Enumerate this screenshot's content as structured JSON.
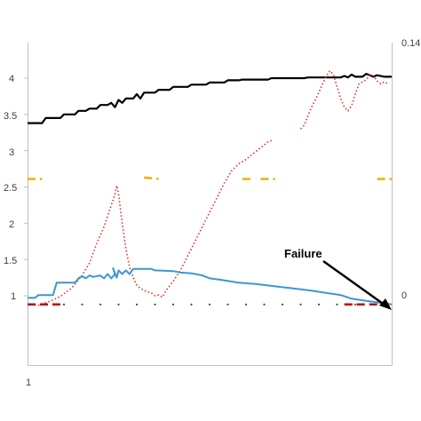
{
  "chart_data": {
    "type": "line",
    "title": "",
    "xlabel": "",
    "ylabel": "",
    "x_tick_labels": [
      "1"
    ],
    "xlim": [
      0,
      100
    ],
    "y_left": {
      "tick_labels": [
        "1",
        "1.5",
        "2",
        "2.5",
        "3",
        "3.5",
        "4"
      ],
      "ylim": [
        0.85,
        4.45
      ]
    },
    "y_right": {
      "tick_labels": [
        "0",
        "0.14"
      ],
      "ylim": [
        -0.055,
        0.14
      ]
    },
    "grid": false,
    "legend": "none",
    "annotations": [
      {
        "text": "Failure",
        "arrow_to": {
          "x": 99,
          "y": 0.05
        }
      }
    ],
    "series": [
      {
        "axis": "left",
        "color": "#000000",
        "style": "solid",
        "step": true,
        "points": [
          [
            0,
            3.38
          ],
          [
            4,
            3.38
          ],
          [
            5,
            3.45
          ],
          [
            9,
            3.45
          ],
          [
            10,
            3.5
          ],
          [
            13,
            3.5
          ],
          [
            14,
            3.55
          ],
          [
            16,
            3.55
          ],
          [
            17,
            3.58
          ],
          [
            19,
            3.58
          ],
          [
            20,
            3.63
          ],
          [
            22,
            3.63
          ],
          [
            23,
            3.66
          ],
          [
            24,
            3.6
          ],
          [
            25,
            3.7
          ],
          [
            26,
            3.66
          ],
          [
            27,
            3.72
          ],
          [
            29,
            3.72
          ],
          [
            30,
            3.78
          ],
          [
            31,
            3.72
          ],
          [
            32,
            3.8
          ],
          [
            35,
            3.8
          ],
          [
            36,
            3.84
          ],
          [
            39,
            3.84
          ],
          [
            40,
            3.88
          ],
          [
            44,
            3.88
          ],
          [
            45,
            3.91
          ],
          [
            49,
            3.91
          ],
          [
            50,
            3.94
          ],
          [
            54,
            3.94
          ],
          [
            55,
            3.97
          ],
          [
            58,
            3.97
          ],
          [
            59,
            3.98
          ],
          [
            66,
            3.98
          ],
          [
            67,
            4.0
          ],
          [
            76,
            4.0
          ],
          [
            77,
            4.01
          ],
          [
            86,
            4.01
          ],
          [
            87,
            4.03
          ],
          [
            88,
            4.01
          ],
          [
            89,
            4.05
          ],
          [
            90,
            4.02
          ],
          [
            92,
            4.02
          ],
          [
            93,
            4.06
          ],
          [
            95,
            4.02
          ],
          [
            96,
            4.04
          ],
          [
            98,
            4.02
          ],
          [
            100,
            4.02
          ]
        ]
      },
      {
        "axis": "left",
        "color": "#e0302a",
        "style": "dotted",
        "points": [
          [
            0,
            0.88
          ],
          [
            3,
            0.87
          ],
          [
            6,
            0.92
          ],
          [
            9,
            0.99
          ],
          [
            12,
            1.1
          ],
          [
            15,
            1.28
          ],
          [
            17,
            1.45
          ],
          [
            19,
            1.72
          ],
          [
            21,
            1.95
          ],
          [
            23,
            2.25
          ],
          [
            24,
            2.4
          ],
          [
            24.5,
            2.52
          ],
          [
            25,
            2.4
          ],
          [
            26,
            2.0
          ],
          [
            27,
            1.65
          ],
          [
            28,
            1.4
          ],
          [
            29,
            1.25
          ],
          [
            30,
            1.15
          ],
          [
            31,
            1.1
          ],
          [
            33,
            1.05
          ],
          [
            34,
            1.04
          ],
          [
            35,
            1.0
          ],
          [
            36,
            1.01
          ],
          [
            37,
            0.98
          ],
          [
            38,
            1.07
          ],
          [
            40,
            1.2
          ],
          [
            42,
            1.35
          ],
          [
            44,
            1.55
          ],
          [
            46,
            1.75
          ],
          [
            48,
            1.95
          ],
          [
            50,
            2.15
          ],
          [
            52,
            2.35
          ],
          [
            54,
            2.55
          ],
          [
            56,
            2.72
          ],
          [
            58,
            2.82
          ],
          [
            60,
            2.88
          ],
          [
            62,
            2.96
          ],
          [
            64,
            3.04
          ],
          [
            66,
            3.12
          ],
          [
            67,
            3.14
          ]
        ],
        "points_b": [
          [
            75,
            3.3
          ],
          [
            76,
            3.35
          ],
          [
            77,
            3.48
          ],
          [
            78,
            3.6
          ],
          [
            79,
            3.7
          ],
          [
            80,
            3.8
          ],
          [
            81,
            3.92
          ],
          [
            82,
            4.02
          ],
          [
            83,
            4.1
          ],
          [
            84,
            4.05
          ],
          [
            85,
            3.88
          ],
          [
            86,
            3.72
          ],
          [
            87,
            3.6
          ],
          [
            88,
            3.55
          ],
          [
            89,
            3.62
          ],
          [
            90,
            3.78
          ],
          [
            91,
            3.92
          ],
          [
            92,
            3.95
          ],
          [
            93,
            3.98
          ],
          [
            94,
            4.04
          ],
          [
            95,
            4.03
          ],
          [
            96,
            3.96
          ],
          [
            97,
            3.92
          ],
          [
            98,
            3.95
          ],
          [
            99,
            3.92
          ]
        ]
      },
      {
        "axis": "left",
        "color": "#3c96d2",
        "style": "solid",
        "points": [
          [
            0,
            0.97
          ],
          [
            2,
            0.97
          ],
          [
            3,
            1.01
          ],
          [
            7,
            1.01
          ],
          [
            8,
            1.18
          ],
          [
            13,
            1.18
          ],
          [
            14,
            1.24
          ],
          [
            15,
            1.27
          ],
          [
            16,
            1.24
          ],
          [
            17,
            1.28
          ],
          [
            18,
            1.26
          ],
          [
            20,
            1.28
          ],
          [
            21,
            1.24
          ],
          [
            22,
            1.3
          ],
          [
            23,
            1.24
          ],
          [
            24,
            1.3
          ],
          [
            23.5,
            1.38
          ],
          [
            24.5,
            1.25
          ],
          [
            25,
            1.35
          ],
          [
            26,
            1.3
          ],
          [
            27,
            1.35
          ],
          [
            28,
            1.3
          ],
          [
            29,
            1.37
          ],
          [
            34,
            1.37
          ],
          [
            35,
            1.35
          ],
          [
            40,
            1.34
          ],
          [
            42,
            1.32
          ],
          [
            45,
            1.31
          ],
          [
            47,
            1.29
          ],
          [
            48,
            1.28
          ],
          [
            50,
            1.24
          ],
          [
            53,
            1.22
          ],
          [
            58,
            1.18
          ],
          [
            63,
            1.16
          ],
          [
            68,
            1.13
          ],
          [
            73,
            1.1
          ],
          [
            78,
            1.07
          ],
          [
            82,
            1.04
          ],
          [
            86,
            1.01
          ],
          [
            89,
            0.96
          ],
          [
            93,
            0.93
          ],
          [
            96,
            0.91
          ],
          [
            99,
            0.89
          ],
          [
            100,
            0.88
          ]
        ]
      },
      {
        "axis": "left",
        "color": "#f0b000",
        "style": "dashed",
        "points": [
          [
            0,
            2.61
          ],
          [
            4,
            2.61
          ]
        ],
        "segments": [
          [
            [
              0,
              2.61
            ],
            [
              4,
              2.61
            ]
          ],
          [
            [
              32,
              2.63
            ],
            [
              36,
              2.61
            ]
          ],
          [
            [
              59,
              2.61
            ],
            [
              62,
              2.61
            ]
          ],
          [
            [
              64,
              2.61
            ],
            [
              68,
              2.61
            ]
          ],
          [
            [
              96,
              2.61
            ],
            [
              100,
              2.61
            ]
          ]
        ]
      },
      {
        "axis": "left",
        "color": "#c00000",
        "style": "dashed",
        "segments": [
          [
            [
              0,
              0.88
            ],
            [
              9,
              0.88
            ]
          ],
          [
            [
              87,
              0.88
            ],
            [
              96,
              0.88
            ]
          ]
        ]
      },
      {
        "axis": "left",
        "color": "#404040",
        "style": "dots",
        "dots_y": 0.88,
        "dots_x": [
          1,
          5,
          10,
          15,
          20,
          25,
          30,
          35,
          40,
          45,
          50,
          55,
          60,
          65,
          70,
          75,
          80,
          85,
          90,
          95
        ]
      }
    ]
  }
}
